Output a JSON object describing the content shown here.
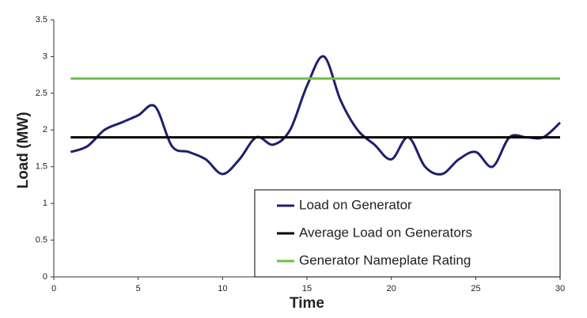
{
  "chart_data": {
    "type": "line",
    "x_label": "Time",
    "y_label": "Load (MW)",
    "x": [
      1,
      2,
      3,
      4,
      5,
      6,
      7,
      8,
      9,
      10,
      11,
      12,
      13,
      14,
      15,
      16,
      17,
      18,
      19,
      20,
      21,
      22,
      23,
      24,
      25,
      26,
      27,
      28,
      29,
      30
    ],
    "series": [
      {
        "name": "Load on Generator",
        "color": "#1f1f6e",
        "values": [
          1.7,
          1.78,
          2.0,
          2.1,
          2.2,
          2.32,
          1.78,
          1.7,
          1.6,
          1.4,
          1.6,
          1.9,
          1.8,
          2.0,
          2.6,
          3.0,
          2.4,
          2.0,
          1.8,
          1.6,
          1.9,
          1.5,
          1.4,
          1.6,
          1.7,
          1.5,
          1.9,
          1.9,
          1.9,
          2.1
        ]
      },
      {
        "name": "Average Load on Generators",
        "color": "#000000",
        "values": [
          1.9,
          1.9,
          1.9,
          1.9,
          1.9,
          1.9,
          1.9,
          1.9,
          1.9,
          1.9,
          1.9,
          1.9,
          1.9,
          1.9,
          1.9,
          1.9,
          1.9,
          1.9,
          1.9,
          1.9,
          1.9,
          1.9,
          1.9,
          1.9,
          1.9,
          1.9,
          1.9,
          1.9,
          1.9,
          1.9
        ]
      },
      {
        "name": "Generator Nameplate Rating",
        "color": "#6cc04a",
        "values": [
          2.7,
          2.7,
          2.7,
          2.7,
          2.7,
          2.7,
          2.7,
          2.7,
          2.7,
          2.7,
          2.7,
          2.7,
          2.7,
          2.7,
          2.7,
          2.7,
          2.7,
          2.7,
          2.7,
          2.7,
          2.7,
          2.7,
          2.7,
          2.7,
          2.7,
          2.7,
          2.7,
          2.7,
          2.7,
          2.7
        ]
      }
    ],
    "xlim": [
      0,
      30
    ],
    "xticks": [
      0,
      5,
      10,
      15,
      20,
      25,
      30
    ],
    "ylim": [
      0,
      3.5
    ],
    "yticks": [
      0,
      0.5,
      1,
      1.5,
      2,
      2.5,
      3,
      3.5
    ],
    "grid": false,
    "legend": "lower right"
  }
}
